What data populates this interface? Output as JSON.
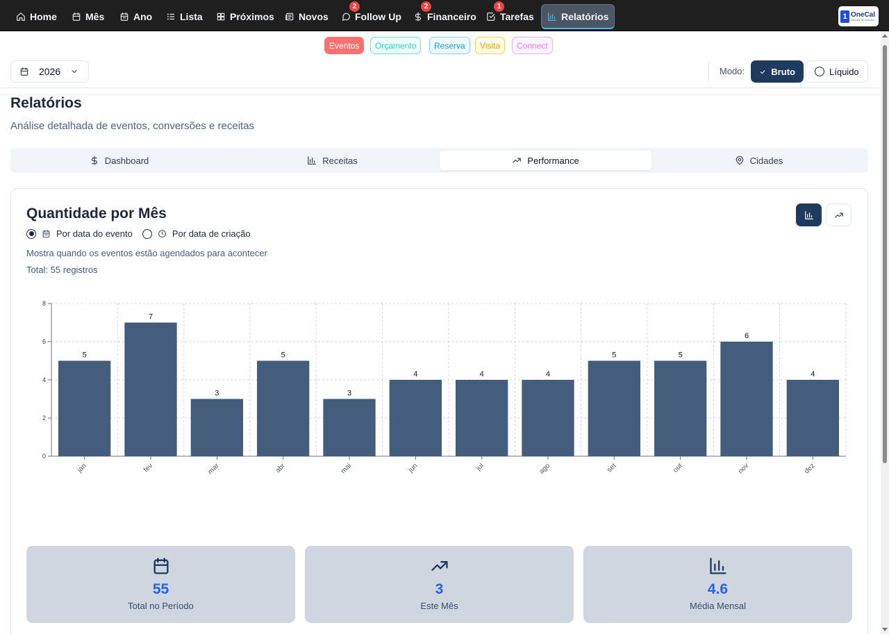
{
  "nav": {
    "items": [
      {
        "label": "Home",
        "icon": "home-icon",
        "badge": null
      },
      {
        "label": "Mês",
        "icon": "calendar-icon",
        "badge": null
      },
      {
        "label": "Ano",
        "icon": "calendar-grid-icon",
        "badge": null
      },
      {
        "label": "Lista",
        "icon": "list-icon",
        "badge": null
      },
      {
        "label": "Próximos",
        "icon": "grid-icon",
        "badge": null
      },
      {
        "label": "Novos",
        "icon": "newspaper-icon",
        "badge": null
      },
      {
        "label": "Follow Up",
        "icon": "message-icon",
        "badge": "2"
      },
      {
        "label": "Financeiro",
        "icon": "dollar-icon",
        "badge": "2"
      },
      {
        "label": "Tarefas",
        "icon": "checkbox-icon",
        "badge": "1"
      },
      {
        "label": "Relatórios",
        "icon": "bar-chart-icon",
        "badge": null
      }
    ],
    "active": "Relatórios",
    "logo": {
      "mark": "1",
      "name": "OneCal",
      "tagline": "agenda de eventos"
    }
  },
  "filters": [
    "Eventos",
    "Orçamento",
    "Reserva",
    "Visita",
    "Connect"
  ],
  "year": {
    "value": "2026"
  },
  "mode": {
    "label": "Modo:",
    "options": [
      "Bruto",
      "Líquido"
    ],
    "selected": "Bruto"
  },
  "page": {
    "title": "Relatórios",
    "subtitle": "Análise detalhada de eventos, conversões e receitas"
  },
  "tabs": [
    {
      "label": "Dashboard",
      "icon": "dollar-icon"
    },
    {
      "label": "Receitas",
      "icon": "bar-chart-icon"
    },
    {
      "label": "Performance",
      "icon": "trending-up-icon"
    },
    {
      "label": "Cidades",
      "icon": "map-pin-icon"
    }
  ],
  "active_tab": "Performance",
  "card": {
    "title": "Quantidade por Mês",
    "radio": {
      "options": [
        "Por data do evento",
        "Por data de criação"
      ],
      "selected": "Por data do evento"
    },
    "description": "Mostra quando os eventos estão agendados para acontecer",
    "total": "Total: 55 registros"
  },
  "chart_data": {
    "type": "bar",
    "categories": [
      "jan",
      "fev",
      "mar",
      "abr",
      "mai",
      "jun",
      "jul",
      "ago",
      "set",
      "out",
      "nov",
      "dez"
    ],
    "values": [
      5,
      7,
      3,
      5,
      3,
      4,
      4,
      4,
      5,
      5,
      6,
      4
    ],
    "ylim": [
      0,
      8
    ],
    "yticks": [
      0,
      2,
      4,
      6,
      8
    ],
    "grid": true,
    "data_labels": true,
    "bar_color": "#445d7c"
  },
  "stats": [
    {
      "icon": "calendar-icon",
      "value": "55",
      "label": "Total no Período"
    },
    {
      "icon": "trending-up-icon",
      "value": "3",
      "label": "Este Mês"
    },
    {
      "icon": "bar-chart-icon",
      "value": "4.6",
      "label": "Média Mensal"
    }
  ],
  "colors": {
    "accent": "#1e3a5f",
    "stat_value": "#2563eb",
    "nav_bg": "#1f1f1f"
  }
}
